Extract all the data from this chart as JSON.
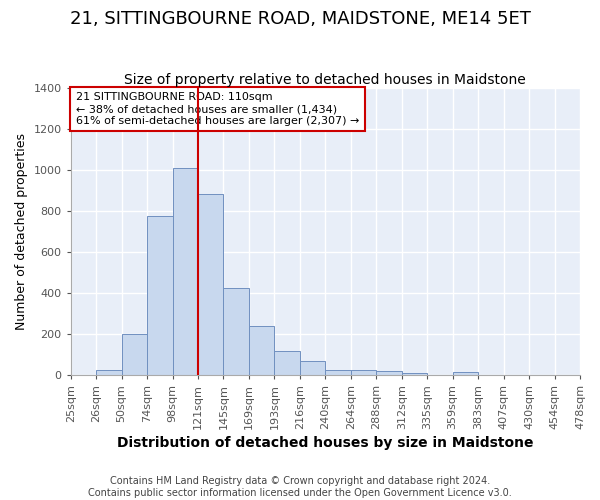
{
  "title1": "21, SITTINGBOURNE ROAD, MAIDSTONE, ME14 5ET",
  "title2": "Size of property relative to detached houses in Maidstone",
  "xlabel": "Distribution of detached houses by size in Maidstone",
  "ylabel": "Number of detached properties",
  "footer1": "Contains HM Land Registry data © Crown copyright and database right 2024.",
  "footer2": "Contains public sector information licensed under the Open Government Licence v3.0.",
  "annotation_line1": "21 SITTINGBOURNE ROAD: 110sqm",
  "annotation_line2": "← 38% of detached houses are smaller (1,434)",
  "annotation_line3": "61% of semi-detached houses are larger (2,307) →",
  "bin_labels": [
    "25sqm",
    "26sqm",
    "50sqm",
    "74sqm",
    "98sqm",
    "121sqm",
    "145sqm",
    "169sqm",
    "193sqm",
    "216sqm",
    "240sqm",
    "264sqm",
    "288sqm",
    "312sqm",
    "335sqm",
    "359sqm",
    "383sqm",
    "407sqm",
    "430sqm",
    "454sqm",
    "478sqm"
  ],
  "bar_heights": [
    0,
    25,
    200,
    775,
    1010,
    885,
    425,
    240,
    115,
    70,
    25,
    25,
    20,
    10,
    0,
    15,
    0,
    0,
    0,
    0
  ],
  "bar_color": "#c8d8ee",
  "bar_edge_color": "#7090c0",
  "red_line_x": 5.0,
  "ylim": [
    0,
    1400
  ],
  "background_color": "#ffffff",
  "plot_bg_color": "#e8eef8",
  "grid_color": "#ffffff",
  "annotation_box_color": "#ffffff",
  "annotation_border_color": "#cc0000",
  "title1_fontsize": 13,
  "title2_fontsize": 10,
  "xlabel_fontsize": 10,
  "ylabel_fontsize": 9,
  "tick_fontsize": 8,
  "footer_fontsize": 7
}
